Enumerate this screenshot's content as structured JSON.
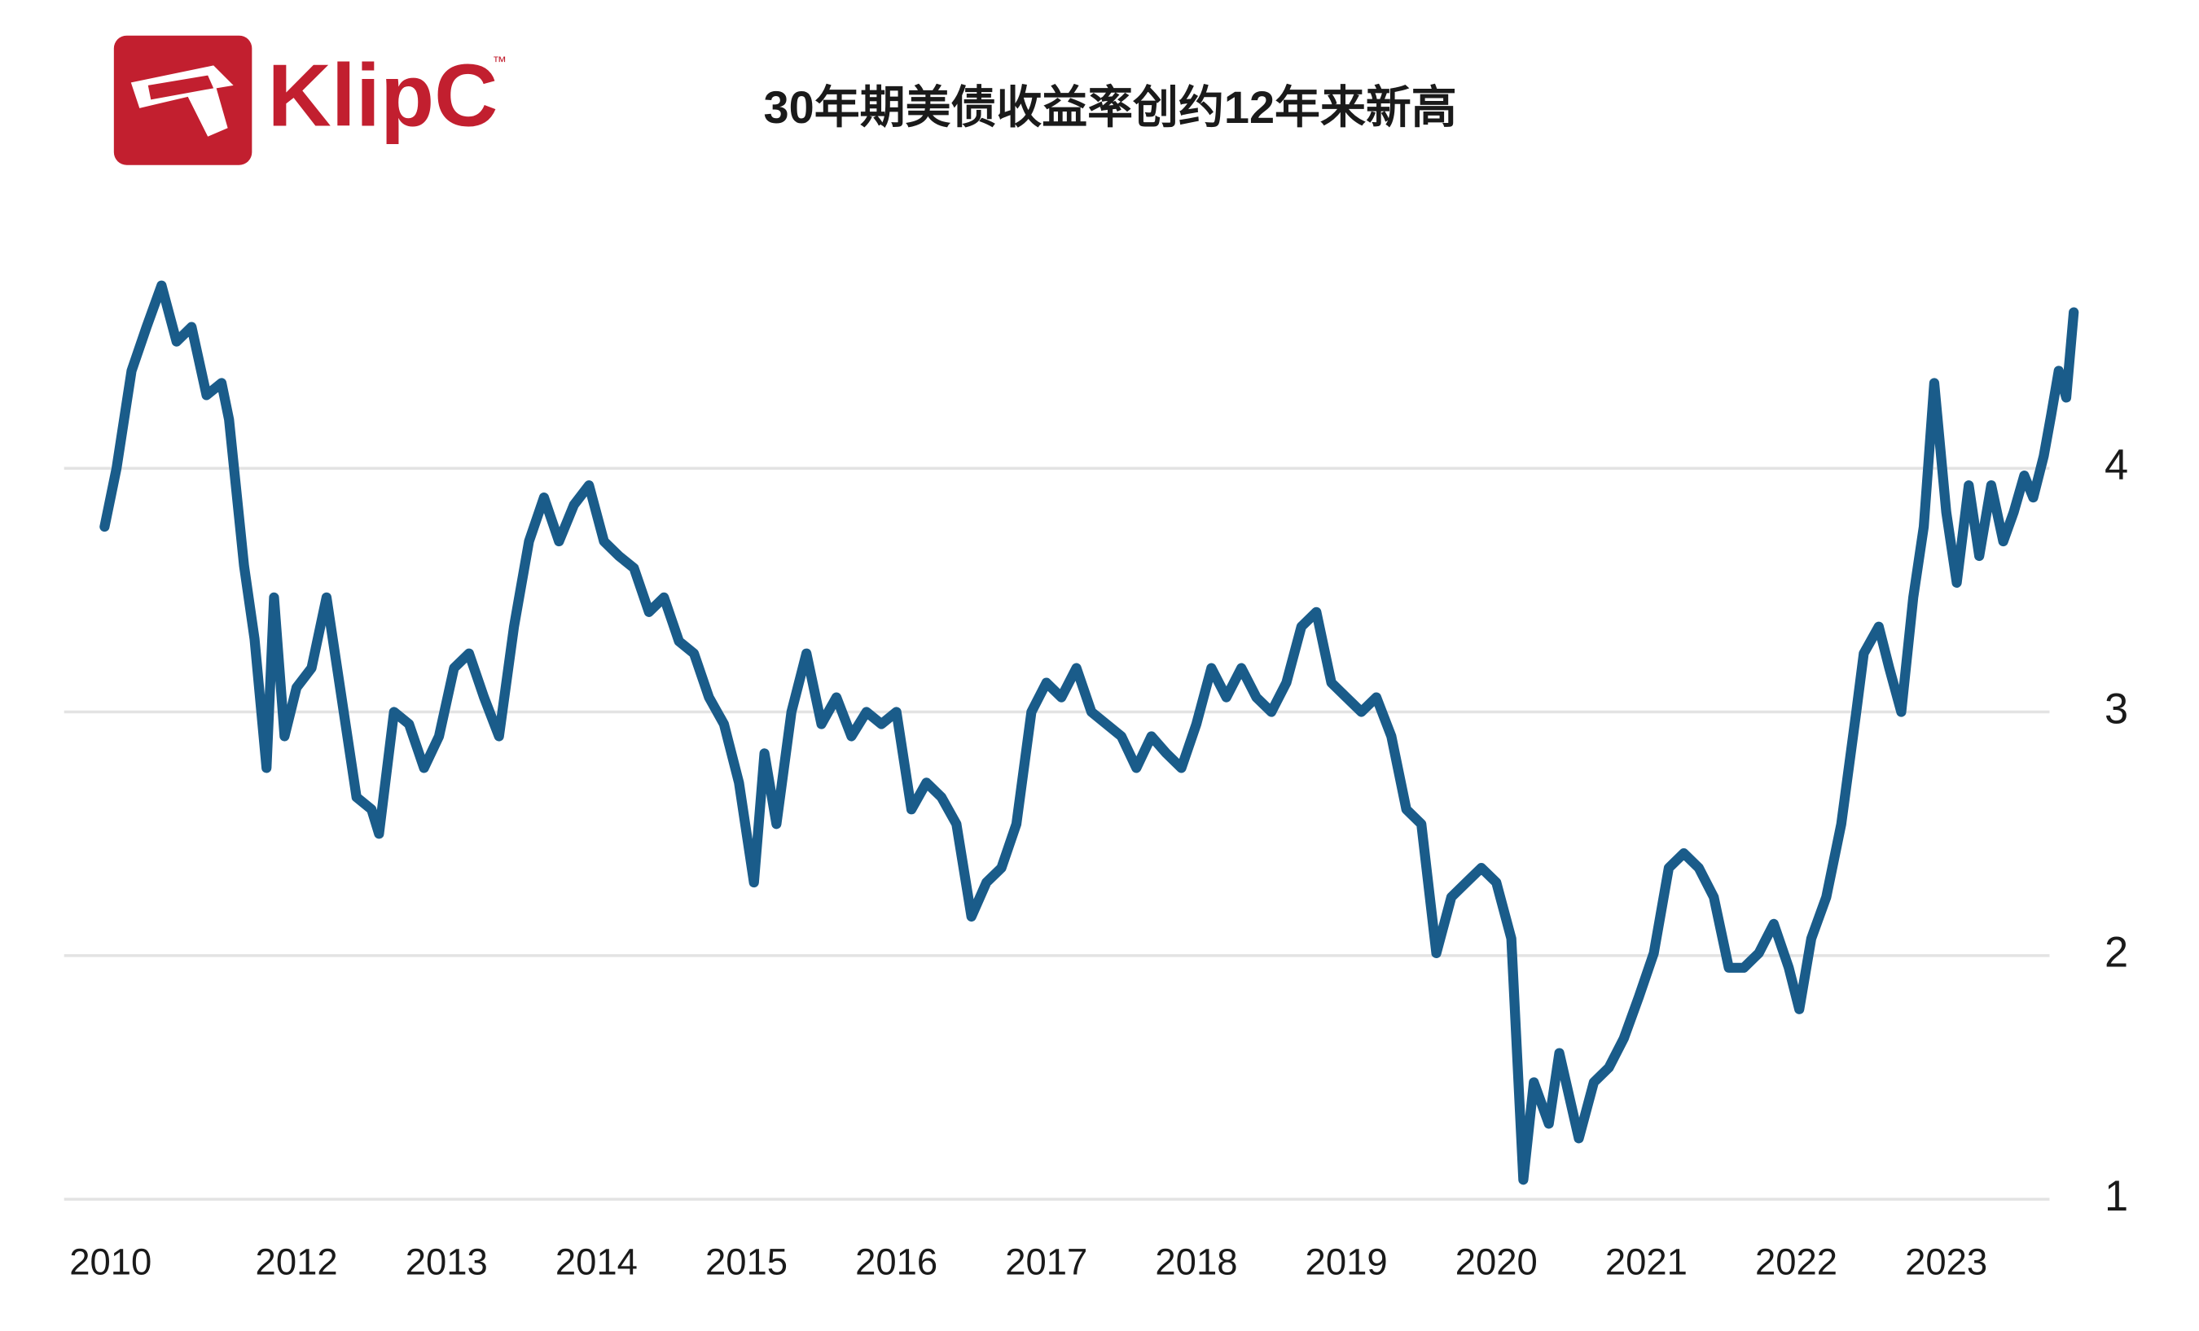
{
  "logo": {
    "text": "KlipC",
    "mark": "™"
  },
  "chart_data": {
    "type": "line",
    "title": "30年期美债收益率创约12年来新高",
    "x": [
      2010.72,
      2010.8,
      2010.9,
      2011.0,
      2011.1,
      2011.2,
      2011.3,
      2011.4,
      2011.5,
      2011.55,
      2011.65,
      2011.72,
      2011.8,
      2011.85,
      2011.92,
      2012.0,
      2012.1,
      2012.2,
      2012.3,
      2012.4,
      2012.5,
      2012.55,
      2012.65,
      2012.75,
      2012.85,
      2012.95,
      2013.05,
      2013.15,
      2013.25,
      2013.35,
      2013.45,
      2013.55,
      2013.65,
      2013.75,
      2013.85,
      2013.95,
      2014.05,
      2014.15,
      2014.25,
      2014.35,
      2014.45,
      2014.55,
      2014.65,
      2014.75,
      2014.85,
      2014.95,
      2015.05,
      2015.12,
      2015.2,
      2015.3,
      2015.4,
      2015.5,
      2015.6,
      2015.7,
      2015.8,
      2015.9,
      2016.0,
      2016.1,
      2016.2,
      2016.3,
      2016.4,
      2016.5,
      2016.6,
      2016.7,
      2016.8,
      2016.9,
      2017.0,
      2017.1,
      2017.2,
      2017.3,
      2017.4,
      2017.5,
      2017.6,
      2017.7,
      2017.8,
      2017.9,
      2018.0,
      2018.1,
      2018.2,
      2018.3,
      2018.4,
      2018.5,
      2018.6,
      2018.7,
      2018.8,
      2018.9,
      2019.0,
      2019.1,
      2019.2,
      2019.3,
      2019.4,
      2019.5,
      2019.6,
      2019.7,
      2019.8,
      2019.9,
      2020.0,
      2020.1,
      2020.18,
      2020.25,
      2020.35,
      2020.42,
      2020.55,
      2020.65,
      2020.75,
      2020.85,
      2020.95,
      2021.05,
      2021.15,
      2021.25,
      2021.35,
      2021.45,
      2021.55,
      2021.65,
      2021.75,
      2021.85,
      2021.95,
      2022.02,
      2022.1,
      2022.2,
      2022.3,
      2022.4,
      2022.45,
      2022.55,
      2022.62,
      2022.7,
      2022.78,
      2022.85,
      2022.92,
      2023.0,
      2023.07,
      2023.15,
      2023.22,
      2023.3,
      2023.38,
      2023.45,
      2023.52,
      2023.58,
      2023.65,
      2023.7,
      2023.75,
      2023.8,
      2023.85
    ],
    "series": [
      {
        "name": "30年期美债收益率",
        "color": "#1a5c8a",
        "values": [
          3.76,
          4.0,
          4.4,
          4.58,
          4.75,
          4.52,
          4.58,
          4.3,
          4.35,
          4.2,
          3.6,
          3.3,
          2.77,
          3.47,
          2.9,
          3.1,
          3.18,
          3.47,
          3.06,
          2.65,
          2.6,
          2.5,
          3.0,
          2.95,
          2.77,
          2.9,
          3.18,
          3.24,
          3.06,
          2.9,
          3.35,
          3.7,
          3.88,
          3.7,
          3.85,
          3.93,
          3.7,
          3.64,
          3.59,
          3.41,
          3.47,
          3.29,
          3.24,
          3.06,
          2.95,
          2.71,
          2.3,
          2.83,
          2.54,
          3.0,
          3.24,
          2.95,
          3.06,
          2.9,
          3.0,
          2.95,
          3.0,
          2.6,
          2.71,
          2.65,
          2.54,
          2.16,
          2.3,
          2.36,
          2.54,
          3.0,
          3.12,
          3.06,
          3.18,
          3.0,
          2.95,
          2.9,
          2.77,
          2.9,
          2.83,
          2.77,
          2.95,
          3.18,
          3.06,
          3.18,
          3.06,
          3.0,
          3.12,
          3.35,
          3.41,
          3.12,
          3.06,
          3.0,
          3.06,
          2.9,
          2.6,
          2.54,
          2.01,
          2.24,
          2.3,
          2.36,
          2.3,
          2.07,
          1.08,
          1.48,
          1.31,
          1.6,
          1.25,
          1.48,
          1.54,
          1.66,
          1.83,
          2.01,
          2.36,
          2.42,
          2.36,
          2.24,
          1.95,
          1.95,
          2.01,
          2.13,
          1.95,
          1.78,
          2.07,
          2.24,
          2.54,
          3.0,
          3.24,
          3.35,
          3.18,
          3.0,
          3.47,
          3.76,
          4.35,
          3.82,
          3.53,
          3.93,
          3.64,
          3.93,
          3.7,
          3.82,
          3.97,
          3.88,
          4.05,
          4.22,
          4.4,
          4.29,
          4.64
        ]
      }
    ],
    "xlim": [
      2010.45,
      2023.85
    ],
    "xticks": [
      {
        "value": 2010.76,
        "label": "2010"
      },
      2012,
      2013,
      2014,
      2015,
      2016,
      2017,
      2018,
      2019,
      2020,
      2021,
      2022,
      2023
    ],
    "ylim": [
      1,
      4.9
    ],
    "yticks": [
      1,
      2,
      3,
      4
    ],
    "grid": true
  }
}
